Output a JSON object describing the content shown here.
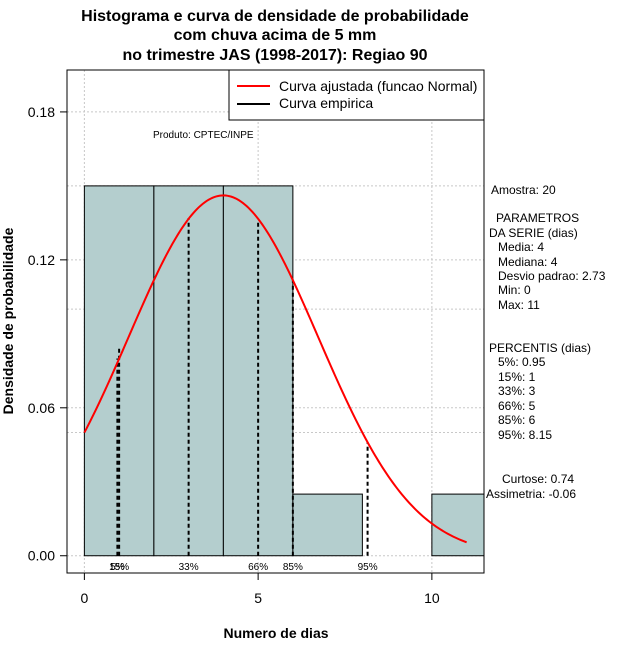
{
  "chart_data": {
    "type": "bar",
    "title_lines": [
      "Histograma e curva de densidade de probabilidade",
      "com chuva acima de 5 mm",
      "no trimestre JAS (1998-2017): Regiao 90"
    ],
    "xlabel": "Numero de dias",
    "ylabel": "Densidade de probabilidade",
    "xlim": [
      -0.5,
      11.5
    ],
    "ylim": [
      -0.007,
      0.197
    ],
    "x_ticks": [
      "0",
      "5",
      "10"
    ],
    "x_tick_values": [
      0,
      5,
      10
    ],
    "y_ticks": [
      "0.00",
      "0.06",
      "0.12",
      "0.18"
    ],
    "y_tick_values": [
      0.0,
      0.06,
      0.12,
      0.18
    ],
    "grid": true,
    "bins": [
      {
        "x0": 0,
        "x1": 2,
        "density": 0.15
      },
      {
        "x0": 2,
        "x1": 4,
        "density": 0.15
      },
      {
        "x0": 4,
        "x1": 6,
        "density": 0.15
      },
      {
        "x0": 6,
        "x1": 8,
        "density": 0.025
      },
      {
        "x0": 8,
        "x1": 10,
        "density": 0.0
      },
      {
        "x0": 10,
        "x1": 12,
        "density": 0.025
      }
    ],
    "normal_curve": {
      "mean": 4,
      "sd": 2.73,
      "from": 0,
      "to": 11
    },
    "legend": {
      "position": "top-right",
      "entries": [
        {
          "label": "Curva ajustada (funcao Normal)",
          "color": "#ff0000"
        },
        {
          "label": "Curva empirica",
          "color": "#000000"
        }
      ]
    },
    "produto_label": "Produto: CPTEC/INPE",
    "percentiles": [
      {
        "label": "5%",
        "x": 0.95,
        "density": 0.08
      },
      {
        "label": "15%",
        "x": 1,
        "density": 0.085
      },
      {
        "label": "33%",
        "x": 3,
        "density": 0.137
      },
      {
        "label": "66%",
        "x": 5,
        "density": 0.136
      },
      {
        "label": "85%",
        "x": 6,
        "density": 0.112
      },
      {
        "label": "95%",
        "x": 8.15,
        "density": 0.046
      }
    ],
    "percentile_axis_labels": [
      {
        "text": "5%",
        "x": 0.95
      },
      {
        "text": "15%",
        "x": 1
      },
      {
        "text": "33%",
        "x": 3
      },
      {
        "text": "66%",
        "x": 5
      },
      {
        "text": "85%",
        "x": 6
      },
      {
        "text": "95%",
        "x": 8.15
      }
    ],
    "stats_text": [
      "Amostra: 20",
      "PARAMETROS",
      "DA SERIE (dias)",
      "Media: 4",
      "Mediana: 4",
      "Desvio padrao: 2.73",
      "Min: 0",
      "Max: 11",
      "PERCENTIS (dias)",
      "5%: 0.95",
      "15%: 1",
      "33%: 3",
      "66%: 5",
      "85%: 6",
      "95%: 8.15",
      "Curtose: 0.74",
      "Assimetria: -0.06"
    ],
    "colors": {
      "bar_fill": "#b4cece",
      "normal_curve": "#ff0000",
      "empirical": "#000000",
      "grid": "#c8c8c8"
    }
  }
}
